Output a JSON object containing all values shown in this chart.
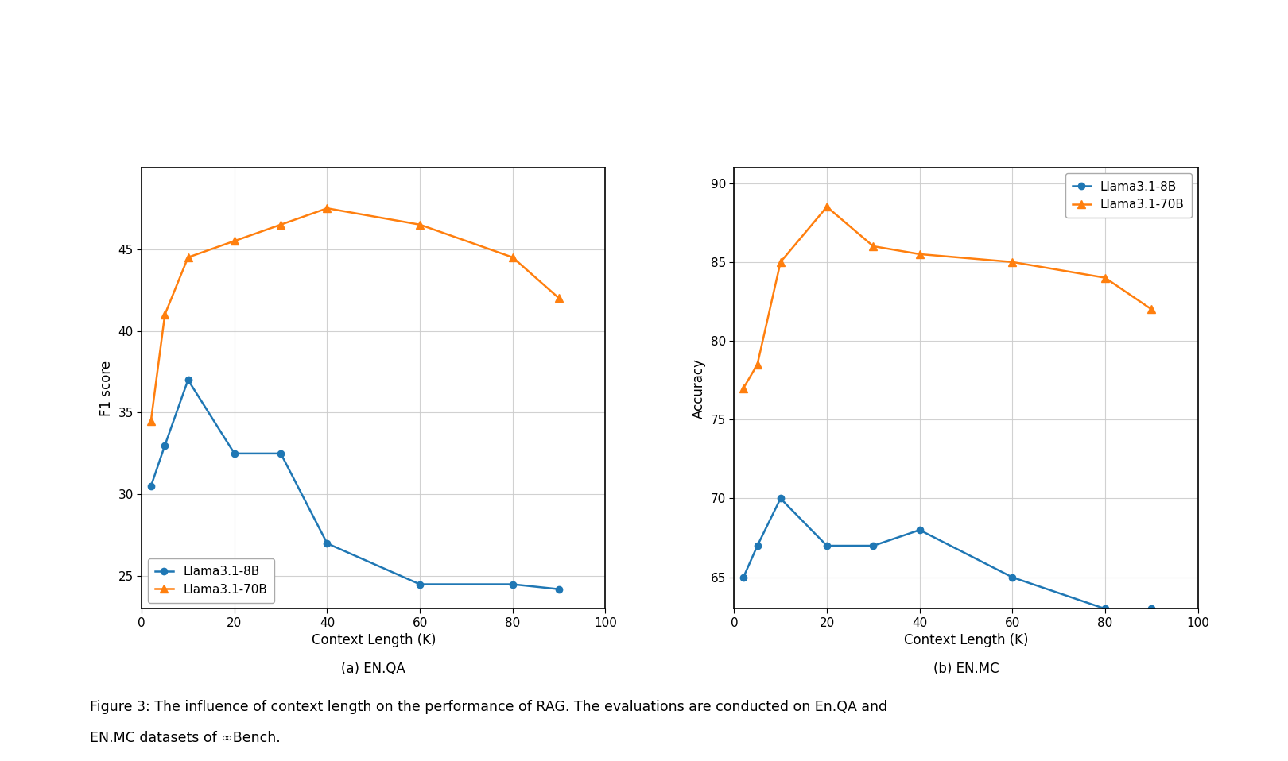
{
  "chart1": {
    "title": "(a) EN.QA",
    "xlabel": "Context Length (K)",
    "ylabel": "F1 score",
    "xlim": [
      0,
      100
    ],
    "ylim": [
      23,
      50
    ],
    "yticks": [
      25,
      30,
      35,
      40,
      45
    ],
    "xticks": [
      0,
      20,
      40,
      60,
      80,
      100
    ],
    "blue_x": [
      2,
      5,
      10,
      20,
      30,
      40,
      60,
      80,
      90
    ],
    "blue_y": [
      30.5,
      33.0,
      37.0,
      32.5,
      32.5,
      27.0,
      24.5,
      24.5,
      24.2
    ],
    "orange_x": [
      2,
      5,
      10,
      20,
      30,
      40,
      60,
      80,
      90
    ],
    "orange_y": [
      34.5,
      41.0,
      44.5,
      45.5,
      46.5,
      47.5,
      46.5,
      44.5,
      42.0
    ]
  },
  "chart2": {
    "title": "(b) EN.MC",
    "xlabel": "Context Length (K)",
    "ylabel": "Accuracy",
    "xlim": [
      0,
      100
    ],
    "ylim": [
      63,
      91
    ],
    "yticks": [
      65,
      70,
      75,
      80,
      85,
      90
    ],
    "xticks": [
      0,
      20,
      40,
      60,
      80,
      100
    ],
    "blue_x": [
      2,
      5,
      10,
      20,
      30,
      40,
      60,
      80,
      90
    ],
    "blue_y": [
      65.0,
      67.0,
      70.0,
      67.0,
      67.0,
      68.0,
      65.0,
      63.0,
      63.0
    ],
    "orange_x": [
      2,
      5,
      10,
      20,
      30,
      40,
      60,
      80,
      90
    ],
    "orange_y": [
      77.0,
      78.5,
      85.0,
      88.5,
      86.0,
      85.5,
      85.0,
      84.0,
      82.0
    ]
  },
  "blue_color": "#1f77b4",
  "orange_color": "#ff7f0e",
  "blue_label": "Llama3.1-8B",
  "orange_label": "Llama3.1-70B",
  "caption_line1": "Figure 3: The influence of context length on the performance of RAG. The evaluations are conducted on En.QA and",
  "caption_line2": "EN.MC datasets of ∞Bench.",
  "background_color": "#ffffff",
  "grid_color": "#cccccc",
  "fig_width": 16.2,
  "fig_height": 9.58
}
